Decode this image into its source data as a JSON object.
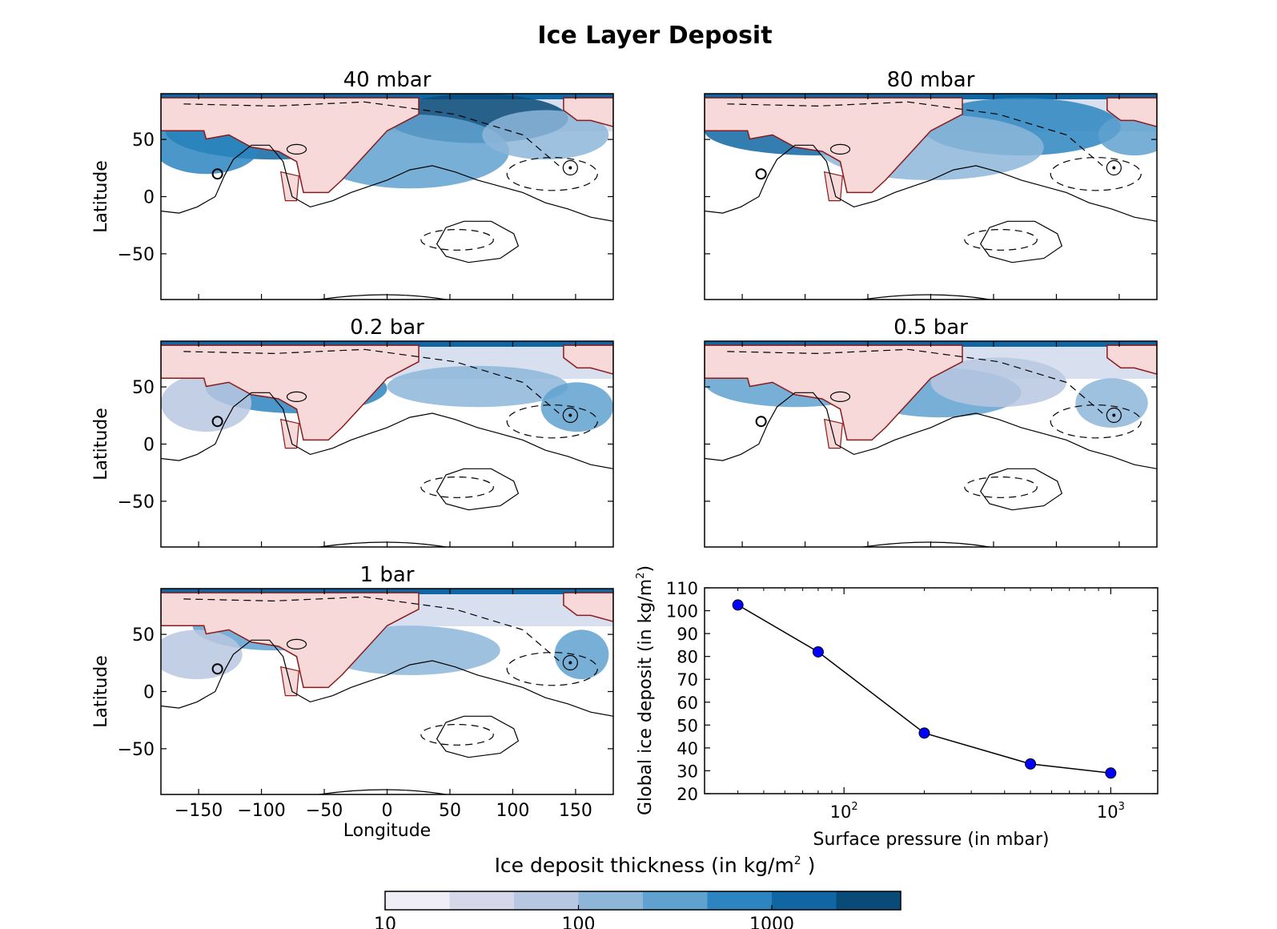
{
  "figure_title": "Ice Layer Deposit",
  "colorbar": {
    "label": "Ice deposit thickness (in kg/m",
    "label_sup": "2",
    "label_end": " )",
    "tick_labels": [
      "10",
      "100",
      "1000"
    ],
    "colors": [
      "#efeef6",
      "#d6d8ea",
      "#b8c7e1",
      "#8db6d9",
      "#5fa1cf",
      "#2c85bf",
      "#0f66a2",
      "#084a78"
    ]
  },
  "colors": {
    "ocean_fill": "#f7d9d9",
    "ocean_border": "#8b1a1a"
  },
  "map_axes": {
    "ylabel": "Latitude",
    "xlabel": "Longitude",
    "xticks": [
      -150,
      -100,
      -50,
      0,
      50,
      100,
      150
    ],
    "xtick_labels": [
      "−150",
      "−100",
      "−50",
      "0",
      "50",
      "100",
      "150"
    ],
    "yticks": [
      50,
      0,
      -50
    ],
    "ytick_labels": [
      "50",
      "0",
      "−50"
    ]
  },
  "panels": [
    {
      "title": "40 mbar",
      "pressure_mbar": 40
    },
    {
      "title": "80 mbar",
      "pressure_mbar": 80
    },
    {
      "title": "0.2 bar",
      "pressure_mbar": 200
    },
    {
      "title": "0.5 bar",
      "pressure_mbar": 500
    },
    {
      "title": "1 bar",
      "pressure_mbar": 1000
    }
  ],
  "chart_data": {
    "type": "line",
    "x": [
      40,
      80,
      200,
      500,
      1000
    ],
    "values": [
      102.5,
      82,
      46.5,
      33,
      29
    ],
    "xlabel": "Surface pressure (in mbar)",
    "ylabel": "Global ice deposit (in kg/m",
    "ylabel_sup": "2",
    "ylabel_end": ")",
    "xscale": "log",
    "xlim": [
      30,
      1500
    ],
    "ylim": [
      20,
      110
    ],
    "yticks": [
      20,
      30,
      40,
      50,
      60,
      70,
      80,
      90,
      100,
      110
    ],
    "ytick_labels": [
      "20",
      "30",
      "40",
      "50",
      "60",
      "70",
      "80",
      "90",
      "100",
      "110"
    ],
    "xtick_base": "10",
    "xtick_exponents": [
      "2",
      "3"
    ],
    "xticks": [
      100,
      1000
    ],
    "marker_color": "#0000ff",
    "line_color": "#000000"
  }
}
